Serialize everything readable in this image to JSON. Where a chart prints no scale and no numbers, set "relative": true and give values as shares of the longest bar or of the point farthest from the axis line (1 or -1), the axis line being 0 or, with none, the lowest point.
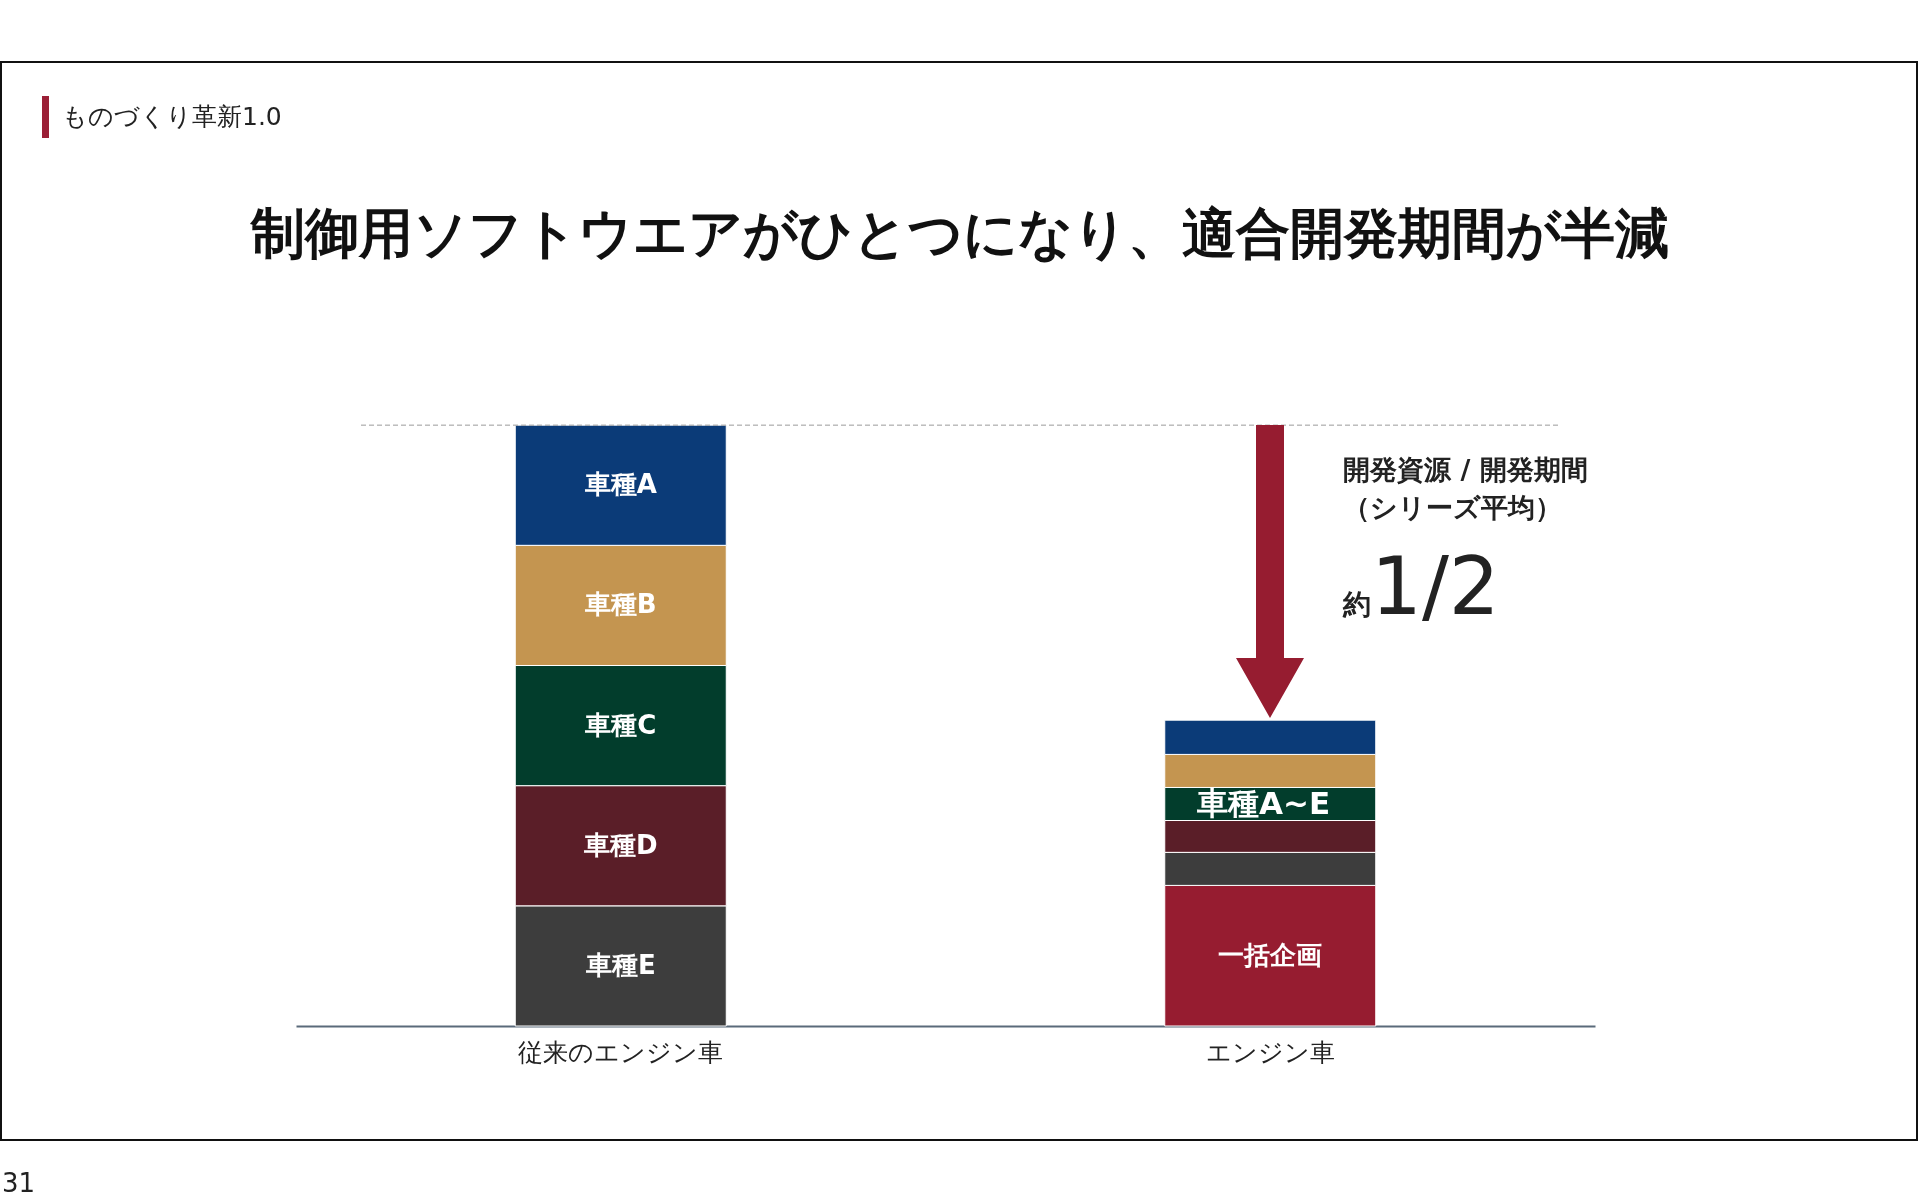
{
  "chart_data": {
    "type": "bar",
    "title": "制御用ソフトウエアがひとつになり、適合開発期間が半減",
    "subtitle": "ものづくり革新1.0",
    "categories": [
      "従来のエンジン車",
      "エンジン車"
    ],
    "stacked": true,
    "relative": true,
    "series": [
      {
        "name": "一括企画",
        "color": "#961c30",
        "values": [
          null,
          0.234
        ]
      },
      {
        "name": "車種E",
        "color": "#3d3d3d",
        "values": [
          0.2,
          0.055
        ]
      },
      {
        "name": "車種D",
        "color": "#5a1e28",
        "values": [
          0.2,
          0.053
        ]
      },
      {
        "name": "車種C",
        "color": "#023d2c",
        "values": [
          0.2,
          0.055
        ]
      },
      {
        "name": "車種B",
        "color": "#c49550",
        "values": [
          0.2,
          0.055
        ]
      },
      {
        "name": "車種A",
        "color": "#0b3b78",
        "values": [
          0.2,
          0.057
        ]
      }
    ],
    "ref_lines": [
      {
        "axis": "y",
        "value": 1,
        "color": "#9a9a9a",
        "line_style": "dashed"
      }
    ],
    "annotations": [
      "車種A~E",
      "開発資源 / 開発期間",
      "（シリーズ平均）",
      "約1/2",
      "31"
    ]
  }
}
